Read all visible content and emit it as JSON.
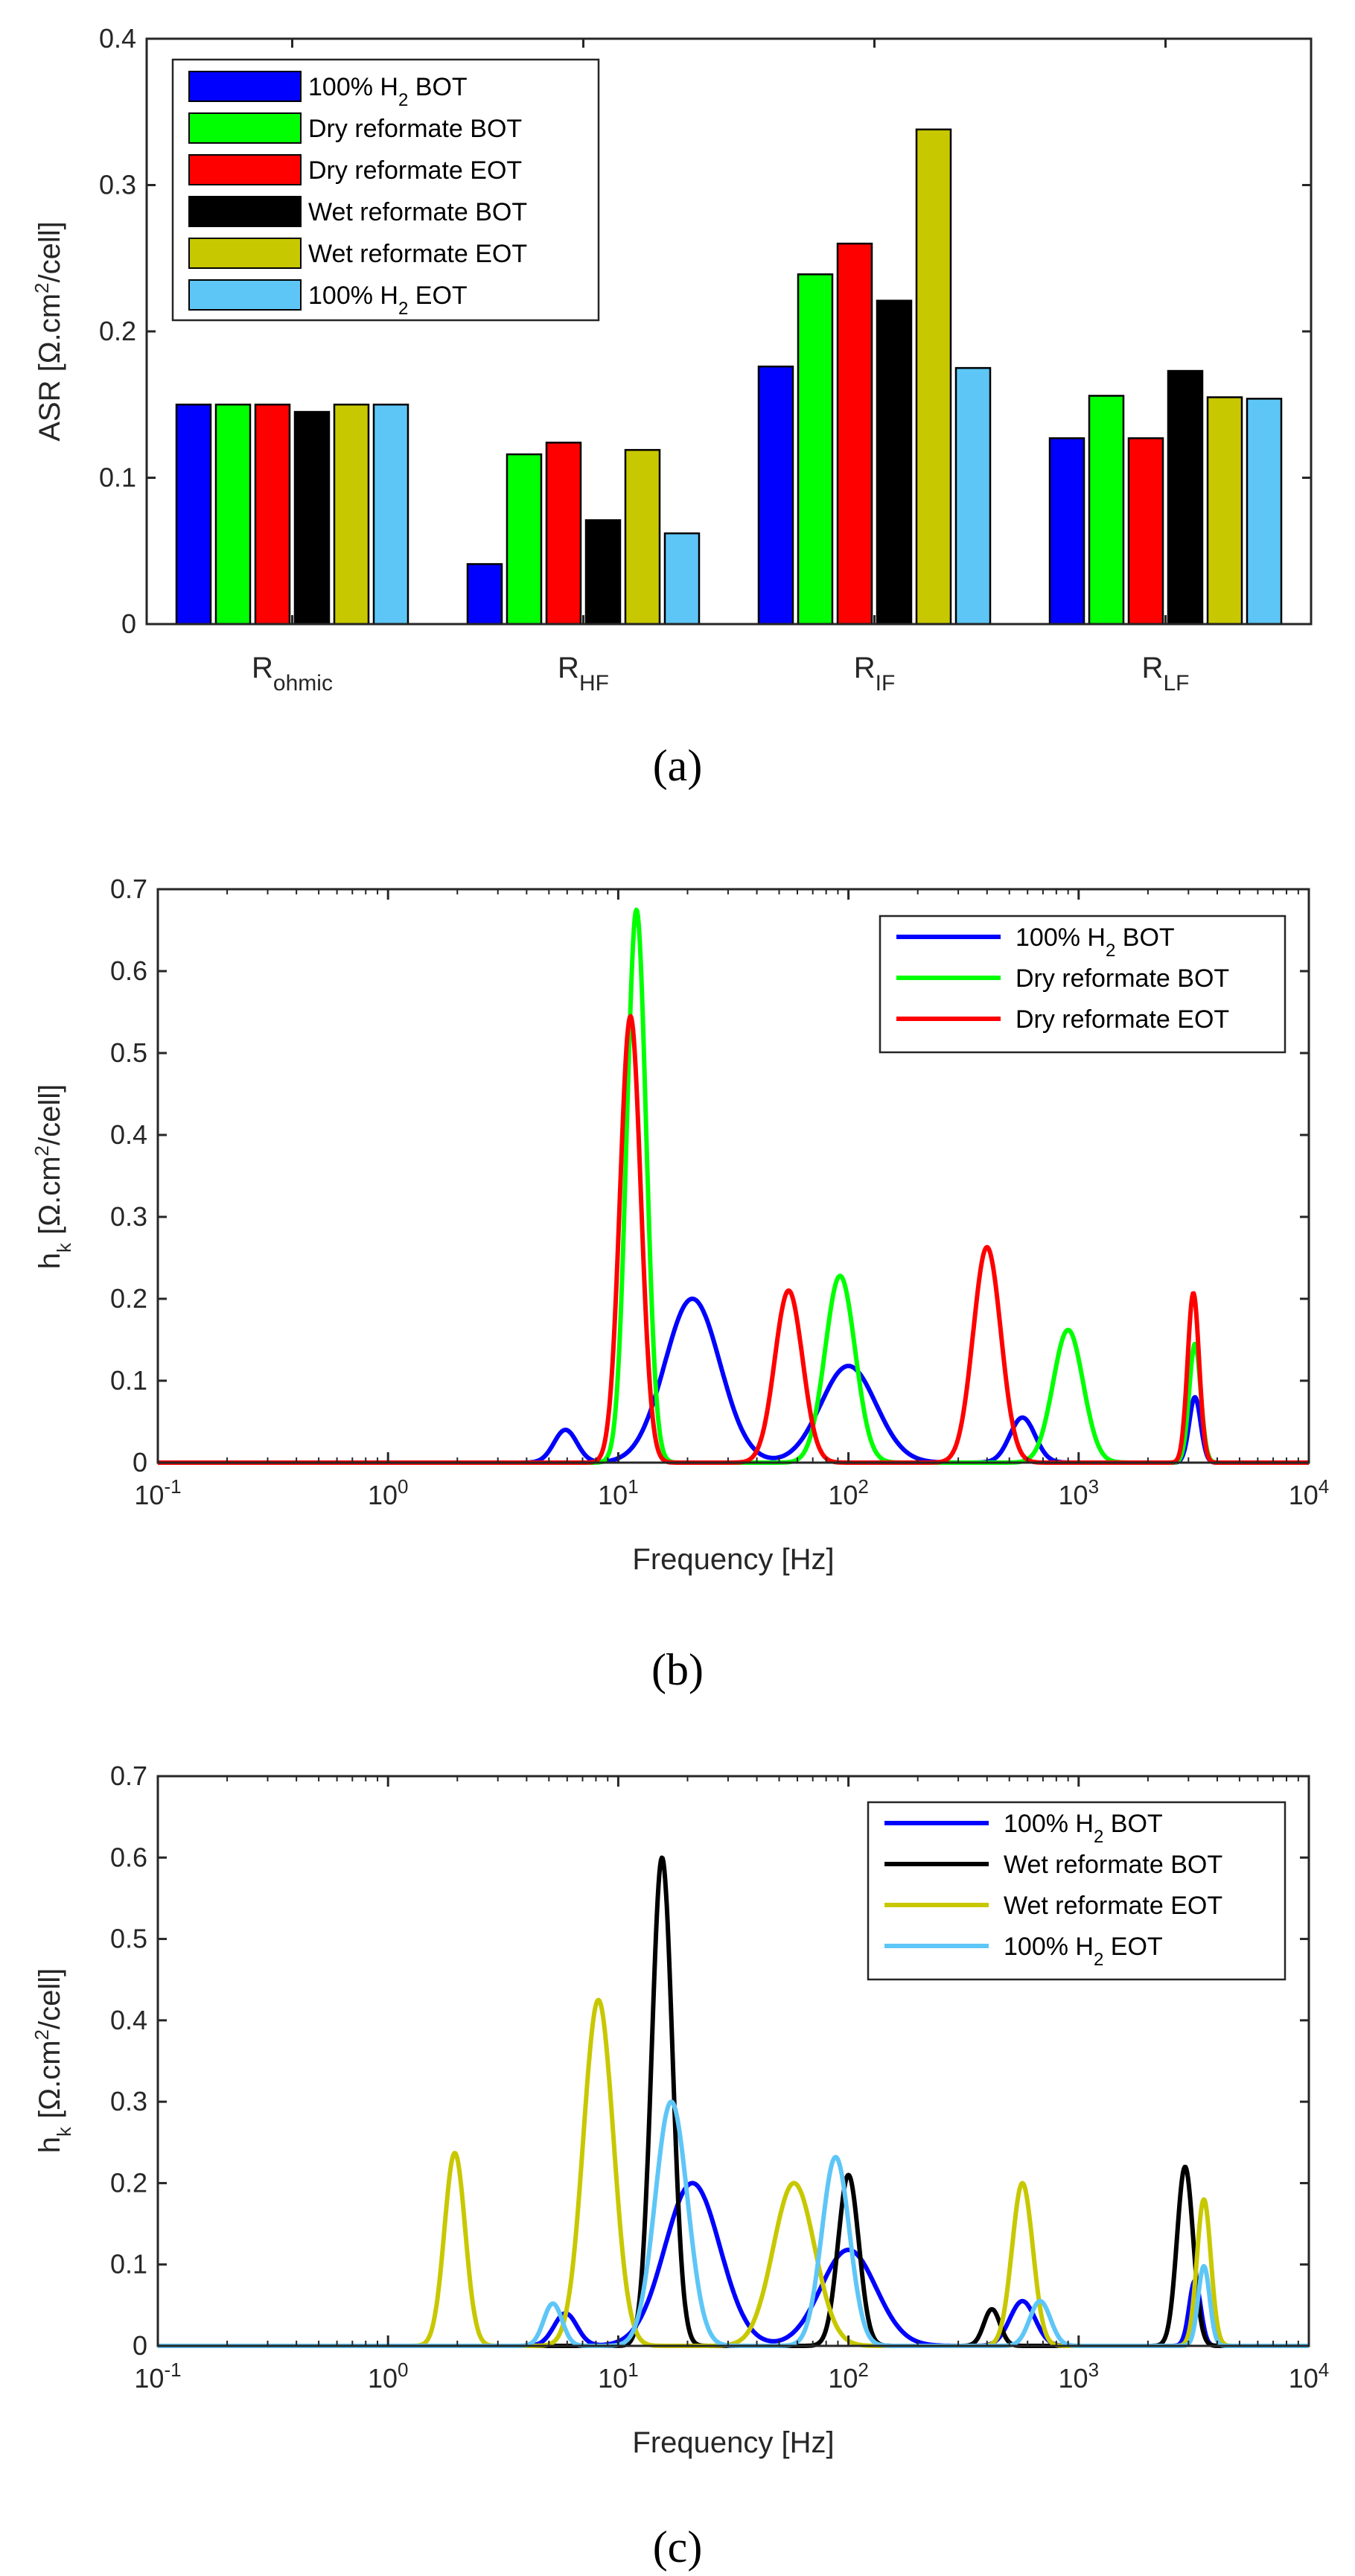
{
  "colors": {
    "blue": "#0000ff",
    "green": "#00ff00",
    "red": "#ff0000",
    "black": "#000000",
    "olive": "#c8c800",
    "lightblue": "#5ec6f7",
    "axis": "#262626"
  },
  "chart_data": [
    {
      "type": "bar",
      "caption": "(a)",
      "categories": [
        {
          "main": "R",
          "sub": "ohmic"
        },
        {
          "main": "R",
          "sub": "HF"
        },
        {
          "main": "R",
          "sub": "IF"
        },
        {
          "main": "R",
          "sub": "LF"
        }
      ],
      "ylabel": {
        "main": "ASR [Ω.cm",
        "sup": "2",
        "rest": "/cell]"
      },
      "ylim": [
        0,
        0.4
      ],
      "yticks": [
        "0",
        "0.1",
        "0.2",
        "0.3",
        "0.4"
      ],
      "legend_position": "top-left",
      "series": [
        {
          "name": {
            "main": "100% H",
            "sub": "2",
            "rest": " BOT"
          },
          "color": "#0000ff",
          "values": [
            0.15,
            0.041,
            0.176,
            0.127
          ]
        },
        {
          "name": {
            "main": "Dry reformate BOT",
            "sub": "",
            "rest": ""
          },
          "color": "#00ff00",
          "values": [
            0.15,
            0.116,
            0.239,
            0.156
          ]
        },
        {
          "name": {
            "main": "Dry reformate EOT",
            "sub": "",
            "rest": ""
          },
          "color": "#ff0000",
          "values": [
            0.15,
            0.124,
            0.26,
            0.127
          ]
        },
        {
          "name": {
            "main": "Wet reformate BOT",
            "sub": "",
            "rest": ""
          },
          "color": "#000000",
          "values": [
            0.145,
            0.071,
            0.221,
            0.173
          ]
        },
        {
          "name": {
            "main": "Wet reformate EOT",
            "sub": "",
            "rest": ""
          },
          "color": "#c8c800",
          "values": [
            0.15,
            0.119,
            0.338,
            0.155
          ]
        },
        {
          "name": {
            "main": "100% H",
            "sub": "2",
            "rest": " EOT"
          },
          "color": "#5ec6f7",
          "values": [
            0.15,
            0.062,
            0.175,
            0.154
          ]
        }
      ]
    },
    {
      "type": "line",
      "caption": "(b)",
      "xscale": "log",
      "xlim": [
        0.1,
        10000
      ],
      "xticks": [
        {
          "base": "10",
          "exp": "-1"
        },
        {
          "base": "10",
          "exp": "0"
        },
        {
          "base": "10",
          "exp": "1"
        },
        {
          "base": "10",
          "exp": "2"
        },
        {
          "base": "10",
          "exp": "3"
        },
        {
          "base": "10",
          "exp": "4"
        }
      ],
      "xlabel": "Frequency [Hz]",
      "ylabel": {
        "main": "h",
        "sub": "k",
        "mid": " [Ω.cm",
        "sup": "2",
        "rest": "/cell]"
      },
      "ylim": [
        0,
        0.7
      ],
      "yticks": [
        "0",
        "0.1",
        "0.2",
        "0.3",
        "0.4",
        "0.5",
        "0.6",
        "0.7"
      ],
      "legend_position": "top-right",
      "series": [
        {
          "name": {
            "main": "100% H",
            "sub": "2",
            "rest": " BOT"
          },
          "color": "#0000ff",
          "peaks": [
            [
              5.9,
              0.04,
              0.05
            ],
            [
              21,
              0.2,
              0.12
            ],
            [
              100,
              0.118,
              0.12
            ],
            [
              570,
              0.055,
              0.055
            ],
            [
              3200,
              0.08,
              0.025
            ]
          ]
        },
        {
          "name": {
            "main": "Dry reformate BOT",
            "sub": "",
            "rest": ""
          },
          "color": "#00ff00",
          "peaks": [
            [
              12,
              0.675,
              0.042
            ],
            [
              92,
              0.228,
              0.065
            ],
            [
              900,
              0.162,
              0.065
            ],
            [
              3200,
              0.145,
              0.025
            ]
          ]
        },
        {
          "name": {
            "main": "Dry reformate EOT",
            "sub": "",
            "rest": ""
          },
          "color": "#ff0000",
          "peaks": [
            [
              11.3,
              0.545,
              0.045
            ],
            [
              55,
              0.21,
              0.06
            ],
            [
              400,
              0.263,
              0.06
            ],
            [
              3150,
              0.207,
              0.025
            ]
          ]
        }
      ]
    },
    {
      "type": "line",
      "caption": "(c)",
      "xscale": "log",
      "xlim": [
        0.1,
        10000
      ],
      "xticks": [
        {
          "base": "10",
          "exp": "-1"
        },
        {
          "base": "10",
          "exp": "0"
        },
        {
          "base": "10",
          "exp": "1"
        },
        {
          "base": "10",
          "exp": "2"
        },
        {
          "base": "10",
          "exp": "3"
        },
        {
          "base": "10",
          "exp": "4"
        }
      ],
      "xlabel": "Frequency [Hz]",
      "ylabel": {
        "main": "h",
        "sub": "k",
        "mid": " [Ω.cm",
        "sup": "2",
        "rest": "/cell]"
      },
      "ylim": [
        0,
        0.7
      ],
      "yticks": [
        "0",
        "0.1",
        "0.2",
        "0.3",
        "0.4",
        "0.5",
        "0.6",
        "0.7"
      ],
      "legend_position": "top-right",
      "series": [
        {
          "name": {
            "main": "100% H",
            "sub": "2",
            "rest": " BOT"
          },
          "color": "#0000ff",
          "peaks": [
            [
              5.9,
              0.04,
              0.05
            ],
            [
              21,
              0.2,
              0.12
            ],
            [
              100,
              0.118,
              0.12
            ],
            [
              570,
              0.055,
              0.055
            ],
            [
              3200,
              0.08,
              0.025
            ]
          ]
        },
        {
          "name": {
            "main": "Wet reformate BOT",
            "sub": "",
            "rest": ""
          },
          "color": "#000000",
          "peaks": [
            [
              15.5,
              0.6,
              0.045
            ],
            [
              100,
              0.21,
              0.045
            ],
            [
              420,
              0.045,
              0.035
            ],
            [
              2900,
              0.22,
              0.035
            ]
          ]
        },
        {
          "name": {
            "main": "Wet reformate EOT",
            "sub": "",
            "rest": ""
          },
          "color": "#c8c800",
          "peaks": [
            [
              1.95,
              0.237,
              0.045
            ],
            [
              8.2,
              0.425,
              0.065
            ],
            [
              58,
              0.2,
              0.09
            ],
            [
              570,
              0.2,
              0.045
            ],
            [
              3500,
              0.18,
              0.03
            ]
          ]
        },
        {
          "name": {
            "main": "100% H",
            "sub": "2",
            "rest": " EOT"
          },
          "color": "#5ec6f7",
          "peaks": [
            [
              5.2,
              0.052,
              0.04
            ],
            [
              17,
              0.3,
              0.07
            ],
            [
              88,
              0.232,
              0.06
            ],
            [
              680,
              0.055,
              0.045
            ],
            [
              3500,
              0.098,
              0.025
            ]
          ]
        }
      ]
    }
  ]
}
